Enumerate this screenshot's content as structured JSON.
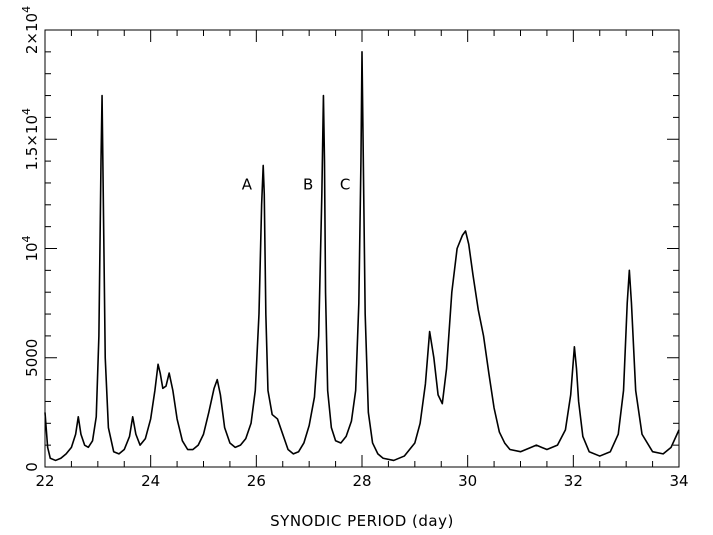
{
  "chart_data": {
    "type": "line",
    "title": "",
    "xlabel": "SYNODIC PERIOD (day)",
    "ylabel": "",
    "xlim": [
      22,
      34
    ],
    "ylim": [
      0,
      20000
    ],
    "grid": false,
    "x_ticks": [
      {
        "value": 22,
        "label": "22"
      },
      {
        "value": 24,
        "label": "24"
      },
      {
        "value": 26,
        "label": "26"
      },
      {
        "value": 28,
        "label": "28"
      },
      {
        "value": 30,
        "label": "30"
      },
      {
        "value": 32,
        "label": "32"
      },
      {
        "value": 34,
        "label": "34"
      }
    ],
    "y_ticks": [
      {
        "value": 0,
        "label": "0"
      },
      {
        "value": 5000,
        "label": "5000"
      },
      {
        "value": 10000,
        "label": "10",
        "exp": "4"
      },
      {
        "value": 15000,
        "label": "1.5×10",
        "exp": "4"
      },
      {
        "value": 20000,
        "label": "2×10",
        "exp": "4"
      }
    ],
    "annotations": [
      {
        "text": "A",
        "x": 25.82,
        "y": 12700
      },
      {
        "text": "B",
        "x": 26.98,
        "y": 12700
      },
      {
        "text": "C",
        "x": 27.68,
        "y": 12700
      }
    ],
    "series": [
      {
        "x": [
          22.0,
          22.05,
          22.1,
          22.2,
          22.3,
          22.4,
          22.5,
          22.58,
          22.63,
          22.68,
          22.75,
          22.82,
          22.9,
          22.97,
          23.02,
          23.06,
          23.08,
          23.1,
          23.14,
          23.2,
          23.3,
          23.4,
          23.5,
          23.6,
          23.66,
          23.72,
          23.8,
          23.9,
          24.0,
          24.08,
          24.14,
          24.18,
          24.23,
          24.29,
          24.35,
          24.42,
          24.5,
          24.6,
          24.7,
          24.8,
          24.9,
          25.0,
          25.1,
          25.2,
          25.26,
          25.32,
          25.4,
          25.5,
          25.6,
          25.7,
          25.8,
          25.9,
          25.98,
          26.05,
          26.1,
          26.13,
          26.15,
          26.18,
          26.22,
          26.3,
          26.4,
          26.5,
          26.6,
          26.7,
          26.8,
          26.9,
          27.0,
          27.1,
          27.18,
          27.24,
          27.27,
          27.29,
          27.31,
          27.35,
          27.42,
          27.5,
          27.6,
          27.7,
          27.8,
          27.88,
          27.94,
          27.98,
          28.0,
          28.02,
          28.06,
          28.12,
          28.2,
          28.3,
          28.4,
          28.6,
          28.8,
          29.0,
          29.1,
          29.2,
          29.28,
          29.36,
          29.44,
          29.52,
          29.6,
          29.7,
          29.8,
          29.9,
          29.96,
          30.02,
          30.1,
          30.2,
          30.3,
          30.4,
          30.5,
          30.6,
          30.7,
          30.8,
          31.0,
          31.2,
          31.3,
          31.4,
          31.5,
          31.7,
          31.85,
          31.95,
          32.02,
          32.06,
          32.1,
          32.18,
          32.3,
          32.5,
          32.7,
          32.85,
          32.95,
          33.02,
          33.06,
          33.1,
          33.18,
          33.3,
          33.5,
          33.7,
          33.85,
          34.0
        ],
        "y": [
          2500,
          900,
          400,
          300,
          400,
          600,
          900,
          1500,
          2300,
          1500,
          1000,
          900,
          1200,
          2300,
          6000,
          14000,
          17000,
          13000,
          5000,
          1800,
          700,
          600,
          800,
          1400,
          2300,
          1500,
          1000,
          1300,
          2200,
          3500,
          4700,
          4300,
          3600,
          3700,
          4300,
          3500,
          2200,
          1200,
          800,
          800,
          1000,
          1500,
          2500,
          3600,
          4000,
          3300,
          1800,
          1100,
          900,
          1000,
          1300,
          2000,
          3500,
          7000,
          12000,
          13800,
          12500,
          7000,
          3500,
          2400,
          2200,
          1500,
          800,
          600,
          700,
          1100,
          1900,
          3200,
          6000,
          12500,
          17000,
          14000,
          8000,
          3500,
          1800,
          1200,
          1100,
          1400,
          2100,
          3500,
          7500,
          14000,
          19000,
          15000,
          7000,
          2500,
          1100,
          600,
          400,
          300,
          500,
          1100,
          2000,
          3800,
          6200,
          5000,
          3300,
          2900,
          4500,
          8000,
          10000,
          10600,
          10800,
          10200,
          8800,
          7200,
          6000,
          4300,
          2700,
          1600,
          1100,
          800,
          700,
          900,
          1000,
          900,
          800,
          1000,
          1700,
          3300,
          5500,
          4500,
          3000,
          1400,
          700,
          500,
          700,
          1500,
          3500,
          7500,
          9000,
          7500,
          3500,
          1500,
          700,
          600,
          900,
          1700
        ]
      }
    ]
  }
}
